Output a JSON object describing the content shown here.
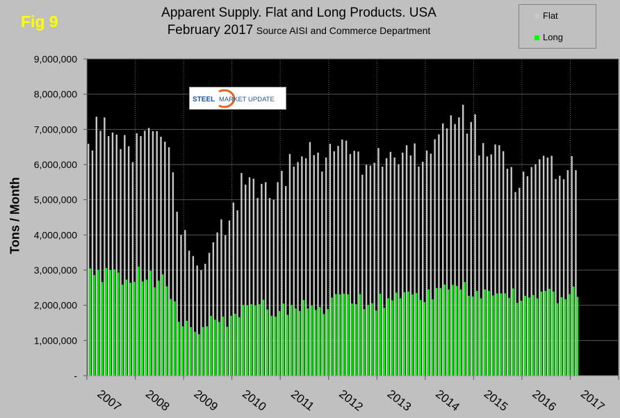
{
  "figure_label": "Fig 9",
  "title": "Apparent Supply. Flat and Long Products. USA",
  "subtitle": "February 2017",
  "source": "Source AISI and Commerce Department",
  "logo_text": "STEEL MARKET UPDATE",
  "colors": {
    "flat": "#c8c8c8",
    "long": "#00ff00",
    "plot_bg": "#000000",
    "page_bg": "#c0c0c0",
    "fig_label": "#ffff00"
  },
  "chart_data": {
    "type": "bar",
    "title": "Apparent Supply. Flat and Long Products. USA",
    "ylabel": "Tons / Month",
    "xlabel": "",
    "ylim": [
      0,
      9000000
    ],
    "ytick_labels": [
      "-",
      "1,000,000",
      "2,000,000",
      "3,000,000",
      "4,000,000",
      "5,000,000",
      "6,000,000",
      "7,000,000",
      "8,000,000",
      "9,000,000"
    ],
    "xtick_labels": [
      "2007",
      "2008",
      "2009",
      "2010",
      "2011",
      "2012",
      "2013",
      "2014",
      "2015",
      "2016",
      "2017"
    ],
    "x_start": "2007-01",
    "x_end": "2017-02",
    "frequency": "monthly",
    "grid": "horizontal major gridlines, dotted vertical year separators",
    "legend": "top-right",
    "series": [
      {
        "name": "Flat",
        "values": [
          6590000,
          6400000,
          7360000,
          6960000,
          7340000,
          6810000,
          6910000,
          6850000,
          6440000,
          6840000,
          6520000,
          6070000,
          6890000,
          6810000,
          6960000,
          7040000,
          6950000,
          6950000,
          6790000,
          6650000,
          6490000,
          5780000,
          4660000,
          4000000,
          4140000,
          3550000,
          3400000,
          3130000,
          3000000,
          3180000,
          3490000,
          3790000,
          4070000,
          4440000,
          3990000,
          4410000,
          4920000,
          4700000,
          5760000,
          5430000,
          5640000,
          5600000,
          5050000,
          5450000,
          5500000,
          5050000,
          5000000,
          5500000,
          5820000,
          5390000,
          6300000,
          5940000,
          6070000,
          6230000,
          6180000,
          6640000,
          6270000,
          6340000,
          5800000,
          6200000,
          6590000,
          6380000,
          6530000,
          6710000,
          6680000,
          6300000,
          6390000,
          6370000,
          5710000,
          5990000,
          5970000,
          6050000,
          6470000,
          5940000,
          6180000,
          6360000,
          6200000,
          6010000,
          6340000,
          6550000,
          6260000,
          6600000,
          5940000,
          6080000,
          6400000,
          6310000,
          6720000,
          6860000,
          7170000,
          7030000,
          7400000,
          7150000,
          7340000,
          7700000,
          6880000,
          7210000,
          7430000,
          6260000,
          6610000,
          6230000,
          6290000,
          6570000,
          6550000,
          6380000,
          5880000,
          5930000,
          5220000,
          5340000,
          5800000,
          5670000,
          5930000,
          6010000,
          6150000,
          6250000,
          6200000,
          6250000,
          5590000,
          5680000,
          5580000,
          5840000,
          6240000,
          5840000
        ]
      },
      {
        "name": "Long",
        "values": [
          3050000,
          2860000,
          3010000,
          2660000,
          3060000,
          3000000,
          3020000,
          2930000,
          2590000,
          2730000,
          2640000,
          2670000,
          3100000,
          2680000,
          2730000,
          2980000,
          2510000,
          2700000,
          2880000,
          2540000,
          2180000,
          2110000,
          1530000,
          1400000,
          1560000,
          1380000,
          1250000,
          1180000,
          1380000,
          1400000,
          1700000,
          1590000,
          1530000,
          1680000,
          1390000,
          1700000,
          1760000,
          1660000,
          2010000,
          2000000,
          2030000,
          1990000,
          2030000,
          2160000,
          1880000,
          1700000,
          1680000,
          1840000,
          2050000,
          1730000,
          2010000,
          1910000,
          1840000,
          2150000,
          1910000,
          1990000,
          1870000,
          1950000,
          1750000,
          1890000,
          2220000,
          2320000,
          2310000,
          2330000,
          2310000,
          2050000,
          2030000,
          2320000,
          1890000,
          2010000,
          2060000,
          1850000,
          2330000,
          1930000,
          2200000,
          2140000,
          2360000,
          2200000,
          2370000,
          2390000,
          2310000,
          2350000,
          2150000,
          2090000,
          2450000,
          2170000,
          2490000,
          2490000,
          2590000,
          2450000,
          2580000,
          2550000,
          2450000,
          2660000,
          2270000,
          2250000,
          2410000,
          2200000,
          2450000,
          2410000,
          2280000,
          2340000,
          2340000,
          2340000,
          2210000,
          2480000,
          2070000,
          2130000,
          2270000,
          2220000,
          2290000,
          2200000,
          2390000,
          2410000,
          2470000,
          2390000,
          2060000,
          2230000,
          2170000,
          2320000,
          2530000,
          2240000
        ]
      }
    ]
  }
}
